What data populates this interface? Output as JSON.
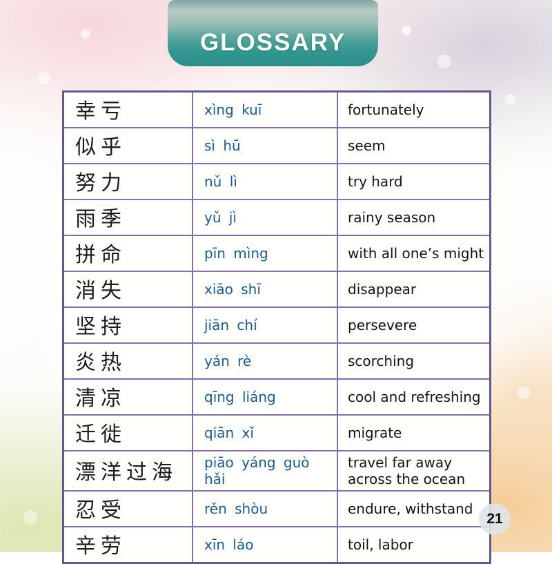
{
  "page": {
    "title": "GLOSSARY",
    "page_number": "21"
  },
  "colors": {
    "banner_teal": "#2b8e88",
    "table_border_purple": "#67578f",
    "row_line_purple": "#8073a4",
    "pinyin_blue": "#1a5a8c",
    "text_black": "#141414"
  },
  "glossary": {
    "columns": [
      "hanzi",
      "pinyin",
      "english"
    ],
    "rows": [
      {
        "hanzi": "幸亏",
        "pinyin": "xìng kuī",
        "english": "fortunately"
      },
      {
        "hanzi": "似乎",
        "pinyin": "sì hū",
        "english": "seem"
      },
      {
        "hanzi": "努力",
        "pinyin": "nǔ lì",
        "english": "try hard"
      },
      {
        "hanzi": "雨季",
        "pinyin": "yǔ jì",
        "english": "rainy season"
      },
      {
        "hanzi": "拼命",
        "pinyin": "pīn mìng",
        "english": "with all one’s might"
      },
      {
        "hanzi": "消失",
        "pinyin": "xiāo shī",
        "english": "disappear"
      },
      {
        "hanzi": "坚持",
        "pinyin": "jiān chí",
        "english": "persevere"
      },
      {
        "hanzi": "炎热",
        "pinyin": "yán rè",
        "english": "scorching"
      },
      {
        "hanzi": "清凉",
        "pinyin": "qīng liáng",
        "english": "cool and refreshing"
      },
      {
        "hanzi": "迁徙",
        "pinyin": "qiān xǐ",
        "english": "migrate"
      },
      {
        "hanzi": "漂洋过海",
        "pinyin": "piāo yáng guò hǎi",
        "english": "travel far away across the ocean"
      },
      {
        "hanzi": "忍受",
        "pinyin": "rěn shòu",
        "english": "endure, withstand"
      },
      {
        "hanzi": "辛劳",
        "pinyin": "xīn láo",
        "english": "toil, labor"
      }
    ]
  }
}
